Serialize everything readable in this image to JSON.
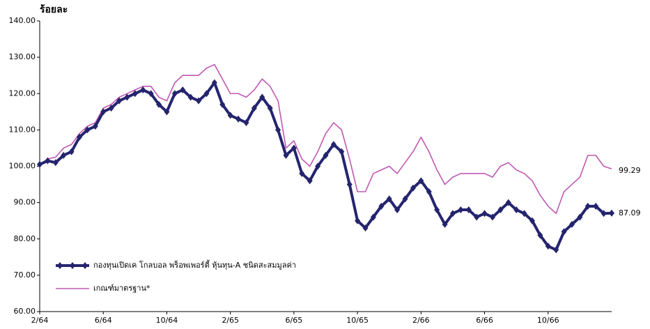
{
  "chart_data": {
    "type": "line",
    "y_label": "ร้อยละ",
    "categories": [
      "2/64",
      null,
      null,
      null,
      null,
      null,
      null,
      null,
      "6/64",
      null,
      null,
      null,
      null,
      null,
      null,
      null,
      "10/64",
      null,
      null,
      null,
      null,
      null,
      null,
      null,
      "2/65",
      null,
      null,
      null,
      null,
      null,
      null,
      null,
      "6/65",
      null,
      null,
      null,
      null,
      null,
      null,
      null,
      "10/65",
      null,
      null,
      null,
      null,
      null,
      null,
      null,
      "2/66",
      null,
      null,
      null,
      null,
      null,
      null,
      null,
      "6/66",
      null,
      null,
      null,
      null,
      null,
      null,
      null,
      "10/66",
      null,
      null,
      null,
      null,
      null,
      null,
      null,
      null
    ],
    "series": [
      {
        "name": "กองทุนเปิดเค โกลบอล พร็อพเพอร์ตี้ หุ้นทุน-A ชนิดสะสมมูลค่า",
        "color": "#24246e",
        "values": [
          100.5,
          101.5,
          101,
          103,
          104,
          108,
          110,
          111,
          115,
          116,
          118,
          119,
          120,
          121,
          120,
          117,
          115,
          120,
          121,
          119,
          118,
          120,
          123,
          117,
          114,
          113,
          112,
          116,
          119,
          116,
          110,
          103,
          105,
          98,
          96,
          100,
          103,
          106,
          104,
          95,
          85,
          83,
          86,
          89,
          91,
          88,
          91,
          94,
          96,
          93,
          88,
          84,
          87,
          88,
          88,
          86,
          87,
          86,
          88,
          90,
          88,
          87,
          85,
          81,
          78,
          77,
          82,
          84,
          86,
          89,
          89,
          87,
          87.09
        ]
      },
      {
        "name": "เกณฑ์มาตรฐาน*",
        "color": "#c058b0",
        "values": [
          100.5,
          102,
          102.5,
          105,
          106,
          109,
          111,
          112,
          116,
          117,
          119,
          120,
          121,
          122,
          122,
          119,
          118,
          123,
          125,
          125,
          125,
          127,
          128,
          124,
          120,
          120,
          119,
          121,
          124,
          122,
          118,
          105,
          107,
          102,
          100,
          104,
          109,
          112,
          110,
          102,
          93,
          93,
          98,
          99,
          100,
          98,
          101,
          104,
          108,
          104,
          99,
          95,
          97,
          98,
          98,
          98,
          98,
          97,
          100,
          101,
          99,
          98,
          96,
          92,
          89,
          87,
          93,
          95,
          97,
          103,
          103,
          100,
          99.29
        ]
      }
    ],
    "ylim": [
      60,
      140
    ],
    "yticks": [
      {
        "value": 60,
        "label": "60.00"
      },
      {
        "value": 70,
        "label": "70.00"
      },
      {
        "value": 80,
        "label": "80.00"
      },
      {
        "value": 90,
        "label": "90.00"
      },
      {
        "value": 100,
        "label": "100.00"
      },
      {
        "value": 110,
        "label": "110.00"
      },
      {
        "value": 120,
        "label": "120.00"
      },
      {
        "value": 130,
        "label": "130.00"
      },
      {
        "value": 140,
        "label": "140.00"
      }
    ],
    "grid": false
  }
}
